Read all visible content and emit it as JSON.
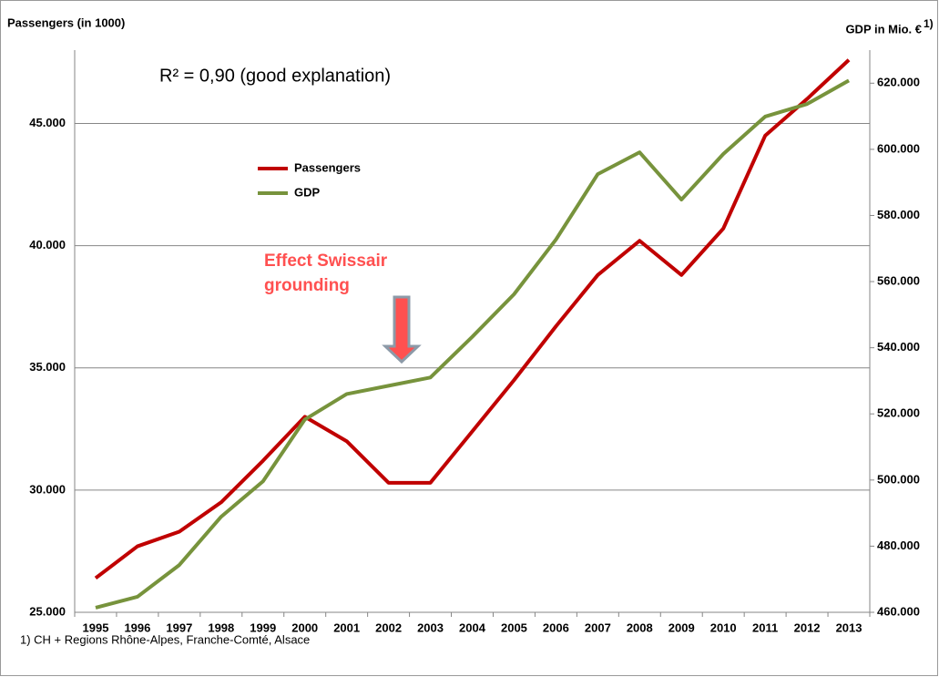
{
  "chart_data": {
    "type": "line",
    "y_label": "Passengers (in 1000)",
    "y2_label": "GDP in Mio. €",
    "y2_label_note": "1)",
    "annotation_fit": "R² = 0,90 (good explanation)",
    "annotation_event": [
      "Effect Swissair",
      "grounding"
    ],
    "footnote": "1)  CH + Regions Rhône-Alpes, Franche-Comté, Alsace",
    "categories": [
      "1995",
      "1996",
      "1997",
      "1998",
      "1999",
      "2000",
      "2001",
      "2002",
      "2003",
      "2004",
      "2005",
      "2006",
      "2007",
      "2008",
      "2009",
      "2010",
      "2011",
      "2012",
      "2013"
    ],
    "series": [
      {
        "name": "Passengers",
        "color": "#c00000",
        "axis": "y",
        "values": [
          26400,
          27700,
          28300,
          29500,
          31200,
          33000,
          32000,
          30300,
          30300,
          32400,
          34500,
          36700,
          38800,
          40200,
          38800,
          40700,
          44500,
          46000,
          47600
        ]
      },
      {
        "name": "GDP",
        "color": "#77933c",
        "axis": "y2",
        "values": [
          461400,
          464700,
          474300,
          488900,
          499600,
          518300,
          526000,
          528500,
          531000,
          543300,
          556200,
          572700,
          592500,
          599100,
          584800,
          598600,
          609900,
          613700,
          620800
        ]
      }
    ],
    "ylim": [
      25000,
      48000
    ],
    "yticks": [
      {
        "value": 25000,
        "label": "25.000"
      },
      {
        "value": 30000,
        "label": "30.000"
      },
      {
        "value": 35000,
        "label": "35.000"
      },
      {
        "value": 40000,
        "label": "40.000"
      },
      {
        "value": 45000,
        "label": "45.000"
      }
    ],
    "y2lim": [
      460000,
      630000
    ],
    "y2ticks": [
      {
        "value": 460000,
        "label": "460.000"
      },
      {
        "value": 480000,
        "label": "480.000"
      },
      {
        "value": 500000,
        "label": "500.000"
      },
      {
        "value": 520000,
        "label": "520.000"
      },
      {
        "value": 540000,
        "label": "540.000"
      },
      {
        "value": 560000,
        "label": "560.000"
      },
      {
        "value": 580000,
        "label": "580.000"
      },
      {
        "value": 600000,
        "label": "600.000"
      },
      {
        "value": 620000,
        "label": "620.000"
      }
    ],
    "grid": true
  }
}
